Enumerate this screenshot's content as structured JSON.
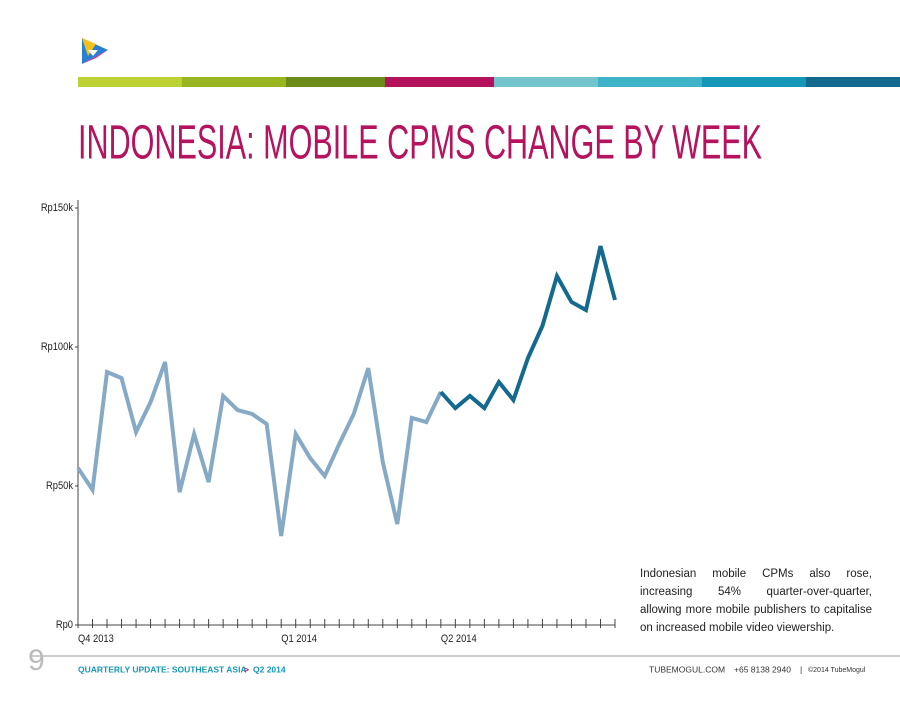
{
  "header": {
    "title": "INDONESIA: MOBILE CPMS CHANGE BY WEEK"
  },
  "chart_data": {
    "type": "line",
    "categories": [
      "Q4 2013",
      null,
      null,
      null,
      null,
      null,
      null,
      null,
      null,
      null,
      null,
      null,
      null,
      null,
      "Q1 2014",
      null,
      null,
      null,
      null,
      null,
      null,
      null,
      null,
      null,
      null,
      "Q2 2014",
      null,
      null,
      null,
      null,
      null,
      null,
      null,
      null,
      null,
      null,
      null,
      null
    ],
    "series": [
      {
        "color": "#86a9c6",
        "values": [
          56500,
          48600,
          91000,
          88800,
          69400,
          80200,
          94600,
          47800,
          68700,
          51400,
          82400,
          77300,
          75900,
          72300,
          32000,
          68700,
          60000,
          53600,
          65100,
          75900,
          92400,
          58600,
          36300,
          74500,
          73000,
          83800,
          null,
          null,
          null,
          null,
          null,
          null,
          null,
          null,
          null,
          null,
          null,
          null
        ]
      },
      {
        "color": "#146a8e",
        "values": [
          null,
          null,
          null,
          null,
          null,
          null,
          null,
          null,
          null,
          null,
          null,
          null,
          null,
          null,
          null,
          null,
          null,
          null,
          null,
          null,
          null,
          null,
          null,
          null,
          null,
          83800,
          78000,
          82400,
          78000,
          87400,
          80900,
          96000,
          107600,
          125500,
          116200,
          113300,
          136300,
          116900
        ]
      }
    ],
    "ylim": [
      0,
      150000
    ],
    "yticks": [
      {
        "value": 0,
        "label": "Rp0"
      },
      {
        "value": 50000,
        "label": "Rp50k"
      },
      {
        "value": 100000,
        "label": "Rp100k"
      },
      {
        "value": 150000,
        "label": "Rp150k"
      }
    ]
  },
  "note": "Indonesian mobile CPMs also rose, increasing 54% quarter-over-quarter, allowing more mobile publishers to capitalise on increased mobile video viewership.",
  "footer": {
    "page": "9",
    "section": "QUARTERLY UPDATE: SOUTHEAST ASIA",
    "separator": ">",
    "edition": "Q2 2014",
    "site": "TUBEMOGUL.COM",
    "phone": "+65 8138 2940",
    "divider": "|",
    "copyright": "©2014 TubeMogul"
  }
}
